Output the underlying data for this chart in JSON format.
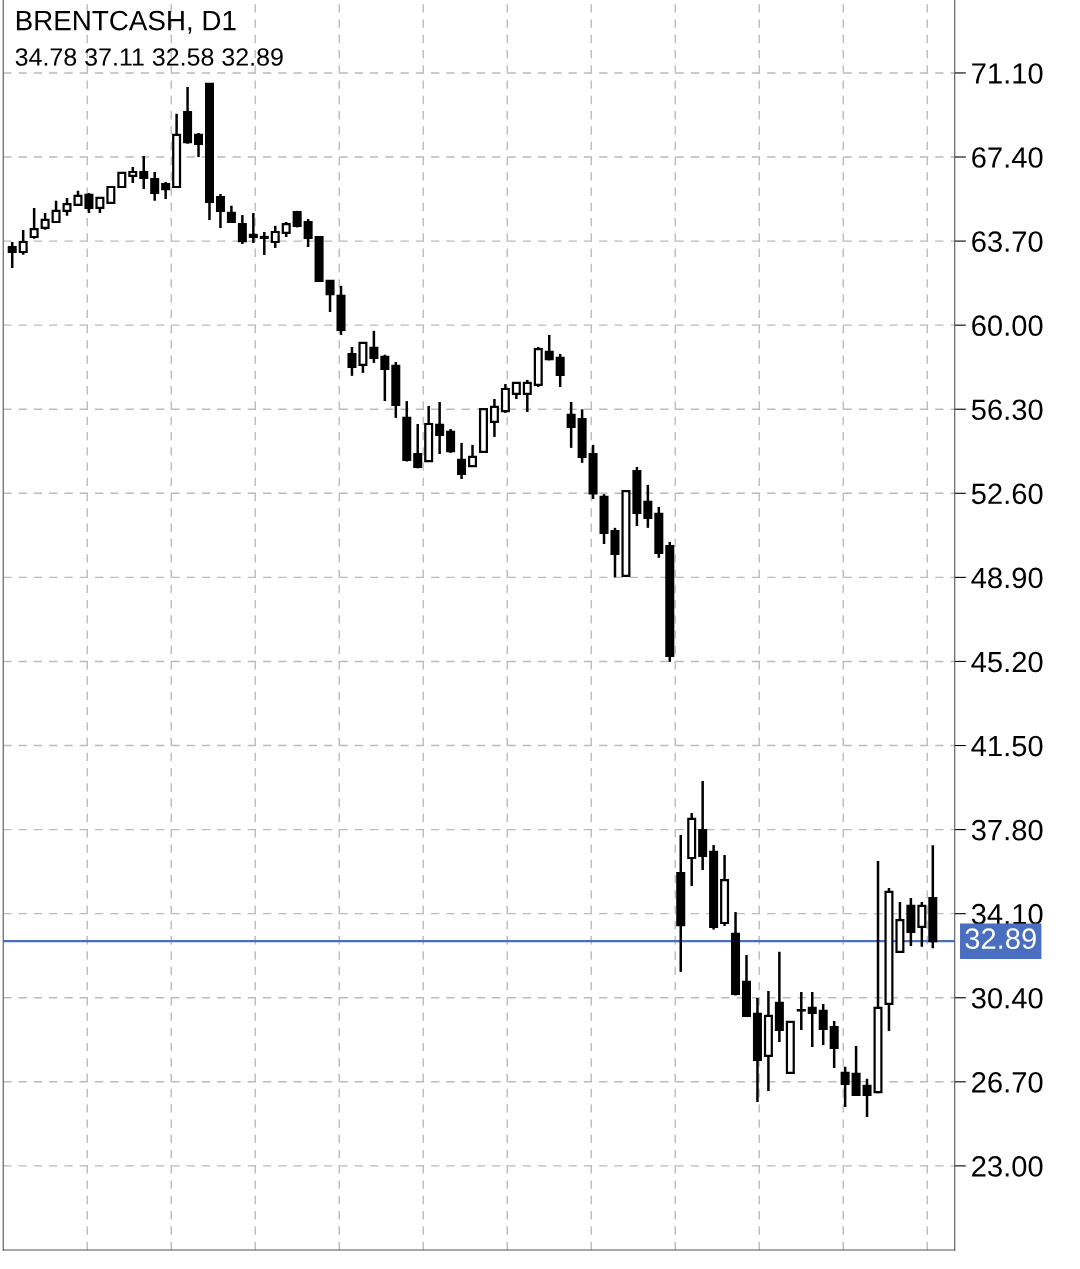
{
  "chart_data": {
    "type": "candlestick",
    "title": "BRENTCASH, D1",
    "subtitle": "34.78 37.11 32.58 32.89",
    "categories": [
      null,
      null,
      null,
      null,
      null,
      null,
      null,
      null,
      null,
      null,
      null,
      null,
      null,
      null,
      null,
      null,
      null,
      null,
      null,
      null,
      null,
      null,
      null,
      null,
      null,
      null,
      null,
      null,
      null,
      null,
      null,
      null,
      null,
      null,
      null,
      null,
      null,
      null,
      null,
      null,
      null,
      null,
      null,
      null,
      null,
      null,
      null,
      null,
      null,
      null,
      null,
      null,
      null,
      null,
      null,
      null,
      null,
      null,
      null,
      null,
      null,
      null,
      null,
      null,
      null,
      null,
      null,
      null,
      null,
      null,
      null,
      null,
      null,
      null,
      null,
      null,
      null,
      null,
      null,
      null,
      null,
      null,
      null,
      null,
      null
    ],
    "ohlc": [
      [
        63.44,
        63.66,
        62.52,
        63.22
      ],
      [
        63.22,
        64.19,
        63.1,
        63.66
      ],
      [
        63.88,
        65.16,
        63.8,
        64.23
      ],
      [
        64.28,
        64.94,
        64.2,
        64.63
      ],
      [
        64.54,
        65.47,
        64.5,
        65.03
      ],
      [
        65.03,
        65.6,
        64.81,
        65.33
      ],
      [
        65.29,
        65.91,
        65.25,
        65.69
      ],
      [
        65.73,
        65.82,
        64.94,
        65.16
      ],
      [
        65.16,
        65.64,
        64.94,
        65.6
      ],
      [
        65.38,
        66.12,
        65.35,
        66.08
      ],
      [
        66.08,
        66.74,
        66.05,
        66.7
      ],
      [
        66.57,
        66.96,
        66.26,
        66.74
      ],
      [
        66.74,
        67.45,
        65.99,
        66.48
      ],
      [
        66.43,
        66.74,
        65.47,
        65.82
      ],
      [
        66.21,
        66.3,
        65.55,
        65.99
      ],
      [
        66.08,
        69.3,
        66.05,
        68.37
      ],
      [
        69.38,
        70.48,
        67.98,
        68.06
      ],
      [
        68.37,
        68.46,
        67.4,
        67.98
      ],
      [
        70.62,
        70.62,
        64.63,
        65.42
      ],
      [
        65.64,
        65.77,
        64.28,
        65.03
      ],
      [
        64.94,
        65.25,
        64.5,
        64.54
      ],
      [
        64.45,
        64.85,
        63.57,
        63.7
      ],
      [
        63.97,
        64.94,
        63.62,
        63.88
      ],
      [
        63.88,
        64.1,
        63.09,
        63.84
      ],
      [
        63.66,
        64.37,
        63.4,
        64.1
      ],
      [
        64.06,
        64.54,
        63.88,
        64.45
      ],
      [
        64.98,
        65.03,
        64.3,
        64.37
      ],
      [
        64.54,
        64.67,
        63.44,
        63.84
      ],
      [
        63.88,
        63.9,
        61.95,
        61.95
      ],
      [
        61.95,
        61.95,
        60.58,
        61.37
      ],
      [
        61.29,
        61.73,
        59.57,
        59.79
      ],
      [
        58.73,
        59.04,
        57.77,
        58.16
      ],
      [
        58.25,
        59.26,
        57.9,
        59.22
      ],
      [
        59.0,
        59.75,
        58.34,
        58.56
      ],
      [
        58.6,
        58.7,
        56.66,
        58.07
      ],
      [
        58.21,
        58.38,
        55.92,
        56.49
      ],
      [
        55.92,
        56.66,
        54.0,
        54.07
      ],
      [
        54.33,
        55.65,
        53.7,
        53.76
      ],
      [
        54.02,
        56.44,
        54.0,
        55.65
      ],
      [
        55.61,
        56.62,
        54.33,
        55.17
      ],
      [
        55.3,
        55.43,
        54.38,
        54.46
      ],
      [
        54.07,
        54.82,
        53.23,
        53.45
      ],
      [
        53.8,
        54.73,
        53.76,
        54.2
      ],
      [
        54.42,
        56.3,
        54.38,
        56.3
      ],
      [
        55.74,
        56.75,
        55.08,
        56.4
      ],
      [
        56.22,
        57.41,
        56.14,
        57.19
      ],
      [
        56.98,
        57.5,
        56.75,
        57.46
      ],
      [
        56.98,
        57.59,
        56.18,
        57.46
      ],
      [
        57.37,
        59.04,
        57.28,
        58.95
      ],
      [
        58.82,
        59.57,
        58.45,
        58.51
      ],
      [
        58.56,
        58.73,
        57.28,
        57.81
      ],
      [
        56.05,
        56.62,
        54.6,
        55.52
      ],
      [
        55.87,
        56.3,
        53.94,
        54.2
      ],
      [
        54.33,
        54.73,
        52.35,
        52.6
      ],
      [
        52.44,
        52.56,
        50.37,
        50.86
      ],
      [
        50.94,
        51.08,
        48.9,
        49.93
      ],
      [
        48.97,
        52.7,
        48.97,
        52.7
      ],
      [
        53.58,
        53.76,
        51.16,
        51.74
      ],
      [
        52.22,
        52.97,
        51.08,
        51.52
      ],
      [
        51.69,
        52.0,
        49.76,
        49.98
      ],
      [
        50.28,
        50.46,
        45.18,
        45.44
      ],
      [
        35.89,
        37.56,
        31.54,
        33.6
      ],
      [
        36.55,
        38.53,
        35.32,
        38.27
      ],
      [
        37.78,
        39.94,
        36.02,
        36.64
      ],
      [
        36.82,
        37.12,
        33.4,
        33.52
      ],
      [
        33.69,
        36.68,
        33.56,
        35.58
      ],
      [
        33.21,
        34.17,
        30.5,
        30.57
      ],
      [
        31.1,
        32.28,
        29.55,
        29.6
      ],
      [
        29.69,
        30.39,
        25.81,
        27.66
      ],
      [
        27.84,
        30.7,
        26.3,
        29.6
      ],
      [
        30.17,
        32.42,
        28.45,
        28.98
      ],
      [
        27.09,
        29.34,
        27.09,
        29.34
      ],
      [
        29.86,
        30.65,
        28.98,
        29.84
      ],
      [
        29.95,
        30.65,
        28.23,
        29.73
      ],
      [
        29.82,
        30.13,
        28.32,
        29.03
      ],
      [
        29.11,
        29.38,
        27.31,
        28.19
      ],
      [
        27.09,
        27.36,
        25.59,
        26.61
      ],
      [
        27.05,
        28.28,
        26.1,
        26.12
      ],
      [
        26.52,
        26.83,
        25.15,
        26.12
      ],
      [
        26.25,
        36.42,
        26.2,
        29.95
      ],
      [
        30.13,
        35.23,
        28.94,
        35.06
      ],
      [
        32.42,
        34.61,
        32.4,
        33.82
      ],
      [
        34.44,
        34.79,
        32.68,
        33.3
      ],
      [
        33.52,
        34.61,
        32.64,
        34.44
      ],
      [
        34.78,
        37.11,
        32.58,
        32.89
      ]
    ],
    "color": "#000000",
    "colors": [
      "#000000",
      "#ffffff",
      "#ffffff",
      "#ffffff",
      "#ffffff",
      "#ffffff",
      "#ffffff",
      "#000000",
      "#ffffff",
      "#ffffff",
      "#ffffff",
      "#ffffff",
      "#000000",
      "#000000",
      "#000000",
      "#ffffff",
      "#000000",
      "#000000",
      "#000000",
      "#000000",
      "#000000",
      "#000000",
      "#000000",
      "#000000",
      "#ffffff",
      "#ffffff",
      "#000000",
      "#000000",
      "#000000",
      "#000000",
      "#000000",
      "#000000",
      "#ffffff",
      "#000000",
      "#000000",
      "#000000",
      "#000000",
      "#000000",
      "#ffffff",
      "#000000",
      "#000000",
      "#000000",
      "#ffffff",
      "#ffffff",
      "#ffffff",
      "#ffffff",
      "#ffffff",
      "#ffffff",
      "#ffffff",
      "#000000",
      "#000000",
      "#000000",
      "#000000",
      "#000000",
      "#000000",
      "#000000",
      "#ffffff",
      "#000000",
      "#000000",
      "#000000",
      "#000000",
      "#000000",
      "#ffffff",
      "#000000",
      "#000000",
      "#ffffff",
      "#000000",
      "#000000",
      "#000000",
      "#ffffff",
      "#000000",
      "#ffffff",
      "#000000",
      "#000000",
      "#000000",
      "#000000",
      "#000000",
      "#000000",
      "#000000",
      "#ffffff",
      "#ffffff",
      "#ffffff",
      "#000000",
      "#ffffff",
      "#000000"
    ],
    "ylim": [
      19.3,
      74.31
    ],
    "yticks": [
      {
        "value": 23.0,
        "label": "23.00"
      },
      {
        "value": 26.7,
        "label": "26.70"
      },
      {
        "value": 30.4,
        "label": "30.40"
      },
      {
        "value": 34.1,
        "label": "34.10"
      },
      {
        "value": 37.8,
        "label": "37.80"
      },
      {
        "value": 41.5,
        "label": "41.50"
      },
      {
        "value": 45.2,
        "label": "45.20"
      },
      {
        "value": 48.9,
        "label": "48.90"
      },
      {
        "value": 52.6,
        "label": "52.60"
      },
      {
        "value": 56.3,
        "label": "56.30"
      },
      {
        "value": 60.0,
        "label": "60.00"
      },
      {
        "value": 63.7,
        "label": "63.70"
      },
      {
        "value": 67.4,
        "label": "67.40"
      },
      {
        "value": 71.1,
        "label": "71.10"
      }
    ],
    "ref_lines": [
      {
        "axis": "y",
        "value": 32.89,
        "label": "32.89",
        "color": "#4a6fc0"
      }
    ],
    "grid": true,
    "tick_labels": "y"
  }
}
